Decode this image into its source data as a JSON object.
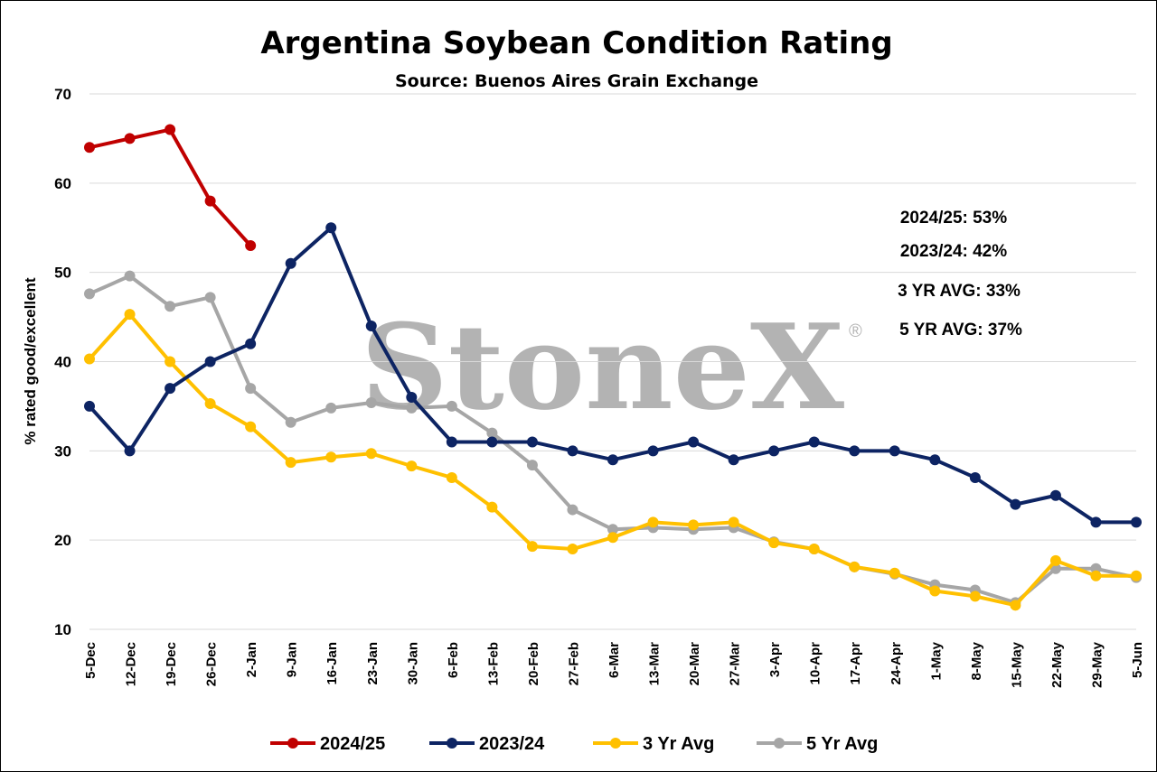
{
  "chart_data": {
    "type": "line",
    "title": "Argentina Soybean Condition Rating",
    "subtitle": "Source: Buenos Aires Grain Exchange",
    "ylabel": "% rated good/excellent",
    "xlabel": "",
    "ylim": [
      10,
      70
    ],
    "yticks": [
      10,
      20,
      30,
      40,
      50,
      60,
      70
    ],
    "grid": "horizontal",
    "legend": "bottom",
    "watermark": "StoneX",
    "watermark_mark": "®",
    "categories": [
      "5-Dec",
      "12-Dec",
      "19-Dec",
      "26-Dec",
      "2-Jan",
      "9-Jan",
      "16-Jan",
      "23-Jan",
      "30-Jan",
      "6-Feb",
      "13-Feb",
      "20-Feb",
      "27-Feb",
      "6-Mar",
      "13-Mar",
      "20-Mar",
      "27-Mar",
      "3-Apr",
      "10-Apr",
      "17-Apr",
      "24-Apr",
      "1-May",
      "8-May",
      "15-May",
      "22-May",
      "29-May",
      "5-Jun"
    ],
    "series": [
      {
        "name": "2024/25",
        "color": "#c00000",
        "values": [
          64,
          65,
          66,
          58,
          53,
          null,
          null,
          null,
          null,
          null,
          null,
          null,
          null,
          null,
          null,
          null,
          null,
          null,
          null,
          null,
          null,
          null,
          null,
          null,
          null,
          null,
          null
        ]
      },
      {
        "name": "2023/24",
        "color": "#0d2463",
        "values": [
          35,
          30,
          37,
          40,
          42,
          51,
          55,
          44,
          36,
          31,
          31,
          31,
          30,
          29,
          30,
          31,
          29,
          30,
          31,
          30,
          30,
          29,
          27,
          24,
          25,
          22,
          22
        ]
      },
      {
        "name": "3 Yr Avg",
        "color": "#ffc000",
        "values": [
          40.3,
          45.3,
          40,
          35.3,
          32.7,
          28.7,
          29.3,
          29.7,
          28.3,
          27,
          23.7,
          19.3,
          19,
          20.3,
          22,
          21.7,
          22,
          19.7,
          19,
          17,
          16.3,
          14.3,
          13.7,
          12.7,
          17.7,
          16,
          16
        ]
      },
      {
        "name": "5 Yr Avg",
        "color": "#a6a6a6",
        "values": [
          47.6,
          49.6,
          46.2,
          47.2,
          37,
          33.2,
          34.8,
          35.4,
          34.8,
          35,
          32,
          28.4,
          23.4,
          21.2,
          21.4,
          21.2,
          21.4,
          19.8,
          19,
          17,
          16.2,
          15,
          14.4,
          13,
          16.8,
          16.8,
          15.8
        ]
      }
    ],
    "annotations": [
      "2024/25: 53%",
      "2023/24: 42%",
      "3 YR AVG: 33%",
      "5 YR AVG: 37%"
    ]
  }
}
